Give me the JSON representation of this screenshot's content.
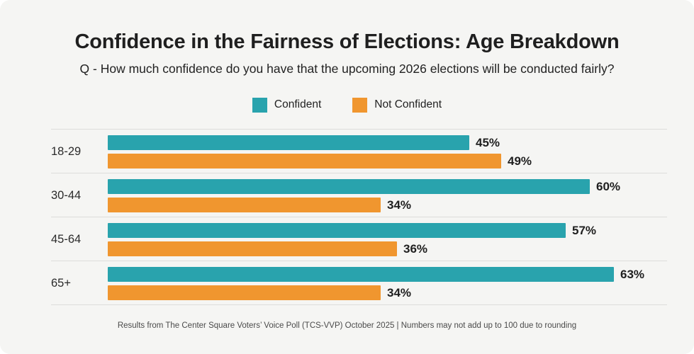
{
  "page": {
    "title": "Confidence in the Fairness of Elections: Age Breakdown",
    "subtitle": "Q - How much confidence do you have that the upcoming 2026 elections will be conducted fairly?",
    "footer": "Results from The Center Square Voters’ Voice Poll (TCS-VVP) October 2025 | Numbers may not add up to 100 due to rounding"
  },
  "colors": {
    "confident": "#29a3ad",
    "not_confident": "#f0962f",
    "card_background": "#f5f5f3",
    "divider": "#dddddb",
    "title_text": "#1f1f1f",
    "footer_text": "#4a4a4a"
  },
  "legend": {
    "items": [
      {
        "label": "Confident",
        "color": "#29a3ad",
        "swatch_icon": "square-swatch"
      },
      {
        "label": "Not Confident",
        "color": "#f0962f",
        "swatch_icon": "square-swatch"
      }
    ]
  },
  "chart_data": {
    "type": "bar",
    "orientation": "horizontal",
    "title": "Confidence in the Fairness of Elections: Age Breakdown",
    "subtitle": "Q - How much confidence do you have that the upcoming 2026 elections will be conducted fairly?",
    "categories": [
      "18-29",
      "30-44",
      "45-64",
      "65+"
    ],
    "series": [
      {
        "name": "Confident",
        "color": "#29a3ad",
        "values": [
          45,
          60,
          57,
          63
        ]
      },
      {
        "name": "Not Confident",
        "color": "#f0962f",
        "values": [
          49,
          34,
          36,
          34
        ]
      }
    ],
    "value_suffix": "%",
    "xlim": [
      0,
      70
    ],
    "grid": false,
    "data_labels": true,
    "legend_position": "top-center"
  }
}
